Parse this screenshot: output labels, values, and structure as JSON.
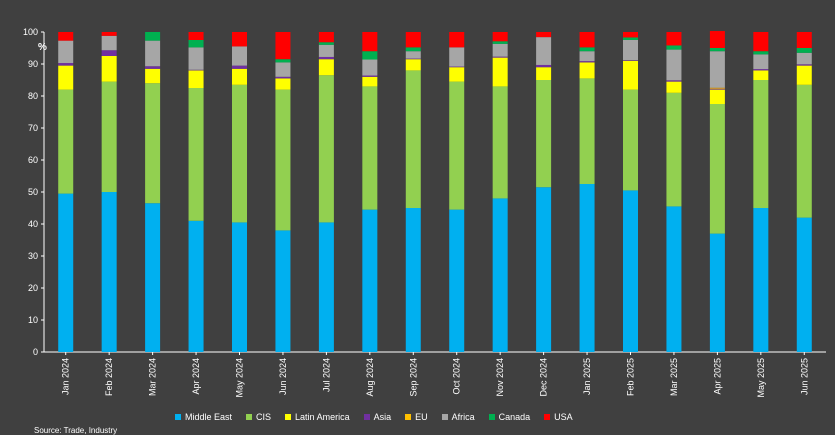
{
  "chart_data": {
    "type": "bar",
    "stacked": true,
    "ylabel": "%",
    "ylim": [
      0,
      100
    ],
    "yticks": [
      0,
      10,
      20,
      30,
      40,
      50,
      60,
      70,
      80,
      90,
      100
    ],
    "categories": [
      "Jan 2024",
      "Feb 2024",
      "Mar 2024",
      "Apr 2024",
      "May 2024",
      "Jun 2024",
      "Jul 2024",
      "Aug 2024",
      "Sep 2024",
      "Oct 2024",
      "Nov 2024",
      "Dec 2024",
      "Jan 2025",
      "Feb 2025",
      "Mar 2025",
      "Apr 2025",
      "May 2025",
      "Jun 2025"
    ],
    "series": [
      {
        "name": "Middle East",
        "color": "#00b0f0",
        "values": [
          49.5,
          50,
          46.5,
          41,
          40.5,
          38,
          40.5,
          44.5,
          45,
          44.5,
          48,
          51.5,
          52.5,
          50.5,
          45.5,
          37,
          45,
          42
        ]
      },
      {
        "name": "CIS",
        "color": "#92d050",
        "values": [
          32.5,
          34.5,
          37.5,
          41.5,
          43,
          44,
          46,
          38.5,
          43,
          40,
          35,
          33.5,
          33,
          31.5,
          35.5,
          40.5,
          40,
          41.5
        ]
      },
      {
        "name": "Latin America",
        "color": "#ffff00",
        "values": [
          7.5,
          8,
          4.5,
          5.5,
          5,
          3.5,
          5,
          3,
          3.5,
          4.5,
          9,
          4,
          5,
          9,
          3.5,
          4.5,
          3,
          6
        ]
      },
      {
        "name": "Asia",
        "color": "#7030a0",
        "values": [
          0.8,
          1.8,
          0.8,
          0.2,
          1,
          0.5,
          0.7,
          0.4,
          0.2,
          0.2,
          0.3,
          0.7,
          0.4,
          0.2,
          0.4,
          0.3,
          0.4,
          0.4
        ]
      },
      {
        "name": "EU",
        "color": "#ffc000",
        "values": [
          0,
          0,
          0,
          0,
          0,
          0,
          0,
          0,
          0,
          0,
          0,
          0,
          0,
          0,
          0,
          0.3,
          0,
          0
        ]
      },
      {
        "name": "Africa",
        "color": "#a6a6a6",
        "values": [
          7,
          4.5,
          8,
          7,
          6,
          4.5,
          3.8,
          5,
          2.3,
          6,
          4,
          8.7,
          3.1,
          6.3,
          9.6,
          11.4,
          4.6,
          3.6
        ]
      },
      {
        "name": "Canada",
        "color": "#00b050",
        "values": [
          0,
          0,
          2.7,
          2.3,
          0,
          1,
          0.8,
          2.6,
          1.2,
          0,
          0.8,
          0,
          1.2,
          0.8,
          1.3,
          1,
          1,
          1.5
        ]
      },
      {
        "name": "USA",
        "color": "#ff0000",
        "values": [
          2.7,
          1.2,
          0,
          2.5,
          4.5,
          8.5,
          3.2,
          6,
          4.8,
          4.8,
          2.9,
          1.6,
          4.8,
          1.7,
          4.2,
          5.3,
          6,
          5
        ]
      }
    ],
    "legend_position": "bottom",
    "grid": false
  },
  "source_note": "Source: Trade, Industry"
}
